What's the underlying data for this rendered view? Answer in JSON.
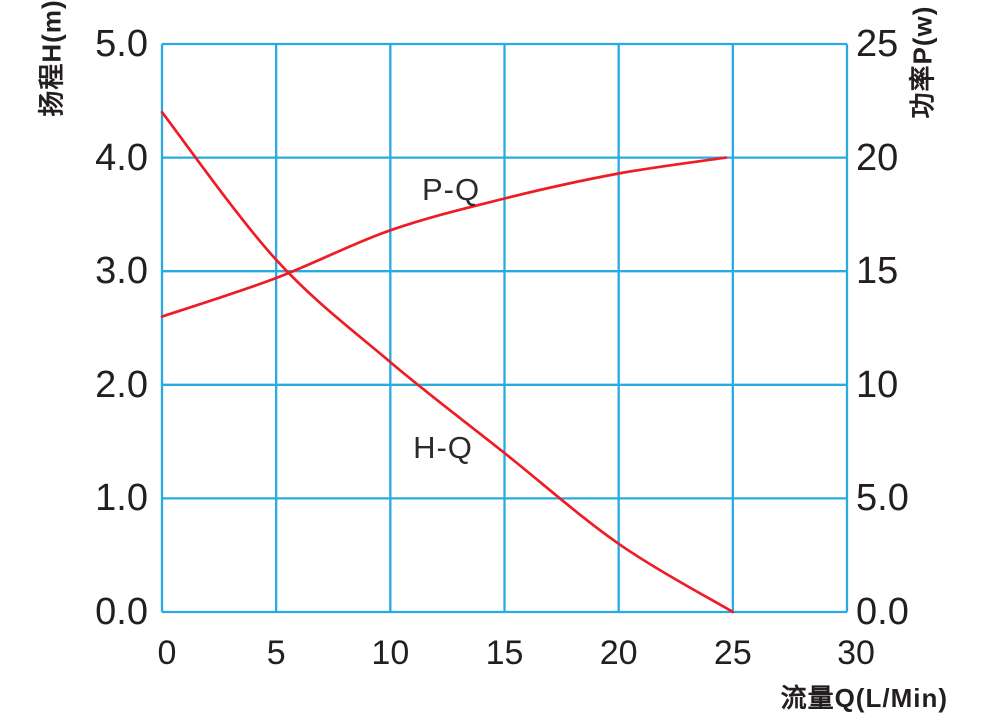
{
  "chart_data": {
    "type": "line",
    "title": "",
    "grid": "on",
    "background": "#ffffff",
    "x_axis": {
      "label": "流量Q(L/Min)",
      "range": [
        0,
        30
      ],
      "ticks": [
        "0",
        "5",
        "10",
        "15",
        "20",
        "25",
        "30"
      ]
    },
    "y_left_axis": {
      "label": "扬程H(m)",
      "range": [
        0,
        5
      ],
      "ticks_top_to_bottom": [
        "5.0",
        "4.0",
        "3.0",
        "2.0",
        "1.0",
        "0.0"
      ]
    },
    "y_right_axis": {
      "label": "功率P(w)",
      "range": [
        0,
        25
      ],
      "ticks_top_to_bottom": [
        "25",
        "20",
        "15",
        "10",
        "5.0",
        "0.0"
      ]
    },
    "series": [
      {
        "name": "H-Q",
        "axis": "left",
        "points": [
          [
            0,
            4.4
          ],
          [
            5,
            3.1
          ],
          [
            10,
            2.2
          ],
          [
            15,
            1.4
          ],
          [
            20,
            0.6
          ],
          [
            25,
            0.0
          ]
        ]
      },
      {
        "name": "P-Q",
        "axis": "right",
        "points": [
          [
            0,
            13.0
          ],
          [
            5,
            14.7
          ],
          [
            10,
            16.8
          ],
          [
            15,
            18.2
          ],
          [
            20,
            19.3
          ],
          [
            24.7,
            20.0
          ]
        ]
      }
    ],
    "colors": {
      "grid": "#29abe2",
      "curves": "#ee1c25",
      "text": "#231f20"
    }
  }
}
